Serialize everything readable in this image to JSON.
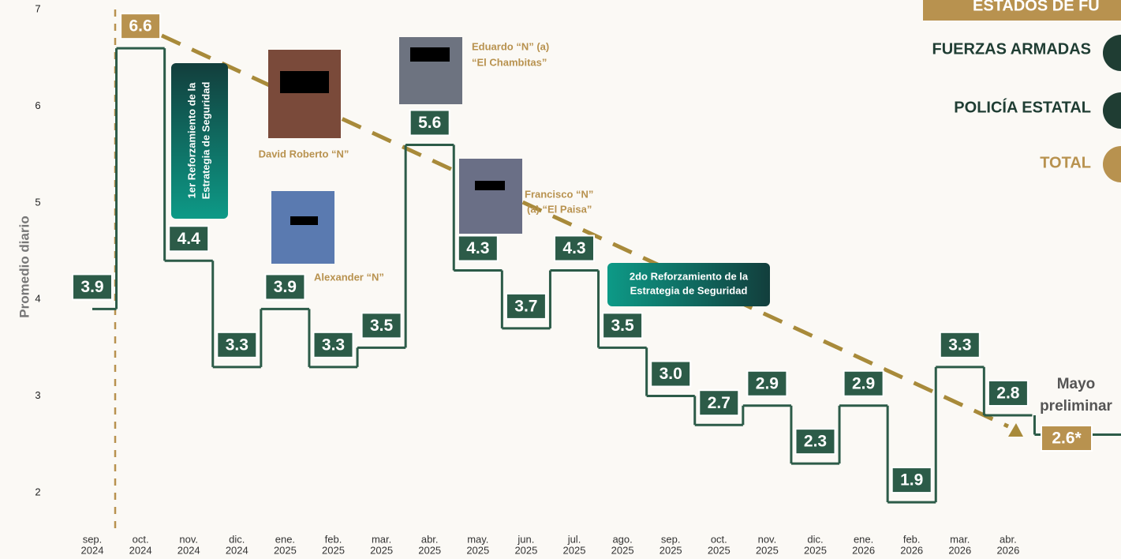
{
  "chart_data": {
    "type": "step",
    "y_label": "Promedio diario",
    "categories": [
      [
        "sep.",
        "2024"
      ],
      [
        "oct.",
        "2024"
      ],
      [
        "nov.",
        "2024"
      ],
      [
        "dic.",
        "2024"
      ],
      [
        "ene.",
        "2025"
      ],
      [
        "feb.",
        "2025"
      ],
      [
        "mar.",
        "2025"
      ],
      [
        "abr.",
        "2025"
      ],
      [
        "may.",
        "2025"
      ],
      [
        "jun.",
        "2025"
      ],
      [
        "jul.",
        "2025"
      ],
      [
        "ago.",
        "2025"
      ],
      [
        "sep.",
        "2025"
      ],
      [
        "oct.",
        "2025"
      ],
      [
        "nov.",
        "2025"
      ],
      [
        "dic.",
        "2025"
      ],
      [
        "ene.",
        "2026"
      ],
      [
        "feb.",
        "2026"
      ],
      [
        "mar.",
        "2026"
      ],
      [
        "abr.",
        "2026"
      ],
      null
    ],
    "values": [
      3.9,
      6.6,
      4.4,
      3.3,
      3.9,
      3.3,
      3.5,
      5.6,
      4.3,
      3.7,
      4.3,
      3.5,
      3.0,
      2.7,
      2.9,
      2.3,
      2.9,
      1.9,
      3.3,
      2.8,
      2.6
    ],
    "value_labels": [
      "3.9",
      "6.6",
      "4.4",
      "3.3",
      "3.9",
      "3.3",
      "3.5",
      "5.6",
      "4.3",
      "3.7",
      "4.3",
      "3.5",
      "3.0",
      "2.7",
      "2.9",
      "2.3",
      "2.9",
      "1.9",
      "3.3",
      "2.8",
      "2.6*"
    ],
    "label_colors": [
      "#2c5b48",
      "#b8924f",
      "#2c5b48",
      "#2c5b48",
      "#2c5b48",
      "#2c5b48",
      "#2c5b48",
      "#2c5b48",
      "#2c5b48",
      "#2c5b48",
      "#2c5b48",
      "#2c5b48",
      "#2c5b48",
      "#2c5b48",
      "#2c5b48",
      "#2c5b48",
      "#2c5b48",
      "#2c5b48",
      "#2c5b48",
      "#2c5b48",
      "#b8924f"
    ],
    "color": "#2c5b48",
    "ylim": [
      1.5,
      7.1
    ],
    "yticks": [
      2,
      3,
      4,
      5,
      6,
      7
    ],
    "annotations": {
      "first_reinforcement": [
        "1er Reforzamiento de la",
        "Estrategia de Seguridad"
      ],
      "second_reinforcement": [
        "2do Reforzamiento de la",
        "Estrategia de Seguridad"
      ],
      "david": "David Roberto “N”",
      "alexander": "Alexander “N”",
      "eduardo": [
        "Eduardo “N” (a)",
        "“El Chambitas”"
      ],
      "francisco": [
        "Francisco “N”",
        "(a) “El Paisa”"
      ],
      "preliminary": [
        "Mayo",
        "preliminar"
      ]
    },
    "legend": {
      "header": "ESTADOS DE FU",
      "items": [
        "FUERZAS ARMADAS",
        "POLICÍA ESTATAL",
        "TOTAL"
      ]
    }
  }
}
